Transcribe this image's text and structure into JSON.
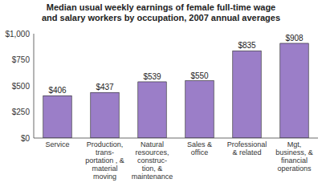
{
  "chart_data": {
    "type": "bar",
    "title": "Median usual weekly earnings of female full-time wage\nand salary workers by occupation, 2007 annual averages",
    "categories": [
      "Service",
      "Production,\ntrans-\nportation , &\nmaterial\nmoving",
      "Natural\nresources,\nconstruc-\ntion, &\nmaintenance",
      "Sales &\noffice",
      "Professional\n& related",
      "Mgt,\nbusiness, &\nfinancial\noperations"
    ],
    "values": [
      406,
      437,
      539,
      550,
      835,
      908
    ],
    "value_labels": [
      "$406",
      "$437",
      "$539",
      "$550",
      "$835",
      "$908"
    ],
    "data_labels": true,
    "color": "#9b7ec8",
    "ylim": [
      0,
      1000
    ],
    "yticks": [
      {
        "value": 0,
        "label": "$0"
      },
      {
        "value": 250,
        "label": "$250"
      },
      {
        "value": 500,
        "label": "$500"
      },
      {
        "value": 750,
        "label": "$750"
      },
      {
        "value": 1000,
        "label": "$1,000"
      }
    ],
    "grid": false
  }
}
